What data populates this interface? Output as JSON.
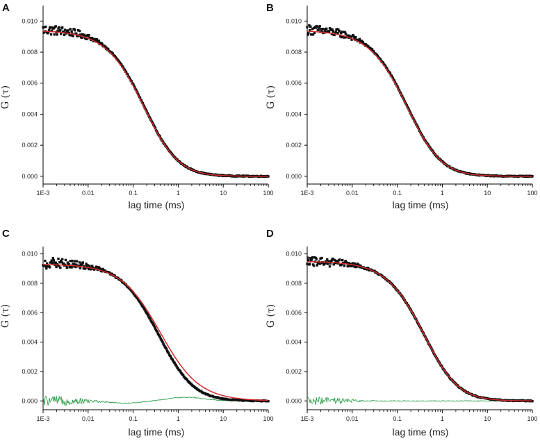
{
  "figure": {
    "xlabel": "lag time (ms)",
    "ylabel": "G (τ)"
  },
  "chart_data": [
    {
      "type": "scatter",
      "panel": "A",
      "xscale": "log",
      "xlim": [
        0.001,
        100
      ],
      "ylim": [
        -0.0005,
        0.011
      ],
      "xticks": [
        0.001,
        0.01,
        0.1,
        1,
        10,
        100
      ],
      "xtick_labels": [
        "1E-3",
        "0.01",
        "0.1",
        "1",
        "10",
        "100"
      ],
      "yticks": [
        0.0,
        0.002,
        0.004,
        0.006,
        0.008,
        0.01
      ],
      "ytick_labels": [
        "0.000",
        "0.002",
        "0.004",
        "0.006",
        "0.008",
        "0.010"
      ],
      "xlabel": "lag time (ms)",
      "ylabel": "G (τ)",
      "series": [
        {
          "name": "data",
          "style": "black squares",
          "model": {
            "G0": 0.0095,
            "tau": 0.2,
            "s": 0.3,
            "noise": 0.0003,
            "offset": 0.0,
            "cross": 0.0
          }
        },
        {
          "name": "fit",
          "style": "red line",
          "model": {
            "G0": 0.0094,
            "tau": 0.2,
            "s": 0.3,
            "offset": 0.0
          }
        }
      ]
    },
    {
      "type": "scatter",
      "panel": "B",
      "xscale": "log",
      "xlim": [
        0.001,
        100
      ],
      "ylim": [
        -0.0005,
        0.011
      ],
      "xticks": [
        0.001,
        0.01,
        0.1,
        1,
        10,
        100
      ],
      "xtick_labels": [
        "1E-3",
        "0.01",
        "0.1",
        "1",
        "10",
        "100"
      ],
      "yticks": [
        0.0,
        0.002,
        0.004,
        0.006,
        0.008,
        0.01
      ],
      "ytick_labels": [
        "0.000",
        "0.002",
        "0.004",
        "0.006",
        "0.008",
        "0.010"
      ],
      "xlabel": "lag time (ms)",
      "ylabel": "G (τ)",
      "series": [
        {
          "name": "data",
          "style": "black squares",
          "model": {
            "G0": 0.0095,
            "tau": 0.19,
            "s": 0.3,
            "noise": 0.0003,
            "offset": 0.0,
            "cross": 0.0
          }
        },
        {
          "name": "fit",
          "style": "red line",
          "model": {
            "G0": 0.0094,
            "tau": 0.19,
            "s": 0.3,
            "offset": 0.0
          }
        }
      ]
    },
    {
      "type": "scatter",
      "panel": "C",
      "xscale": "log",
      "xlim": [
        0.001,
        100
      ],
      "ylim": [
        -0.0006,
        0.0105
      ],
      "xticks": [
        0.001,
        0.01,
        0.1,
        1,
        10,
        100
      ],
      "xtick_labels": [
        "1E-3",
        "0.01",
        "0.1",
        "1",
        "10",
        "100"
      ],
      "yticks": [
        0.0,
        0.002,
        0.004,
        0.006,
        0.008,
        0.01
      ],
      "ytick_labels": [
        "0.000",
        "0.002",
        "0.004",
        "0.006",
        "0.008",
        "0.010"
      ],
      "xlabel": "lag time (ms)",
      "ylabel": "G (τ)",
      "series": [
        {
          "name": "data",
          "style": "black squares",
          "model": {
            "G0": 0.0094,
            "tau": 0.4,
            "s": 0.2,
            "noise": 0.00035,
            "offset": 0.0,
            "cross": 0.0
          }
        },
        {
          "name": "fit",
          "style": "red line",
          "model": {
            "G0": 0.0093,
            "tau": 0.4,
            "s": 0.0,
            "offset": 0.0
          }
        },
        {
          "name": "residuals",
          "style": "green line",
          "model": {
            "amp": 0.00025,
            "noise": 0.00035,
            "decay": 0.01
          }
        }
      ]
    },
    {
      "type": "scatter",
      "panel": "D",
      "xscale": "log",
      "xlim": [
        0.001,
        100
      ],
      "ylim": [
        -0.0006,
        0.0105
      ],
      "xticks": [
        0.001,
        0.01,
        0.1,
        1,
        10,
        100
      ],
      "xtick_labels": [
        "1E-3",
        "0.01",
        "0.1",
        "1",
        "10",
        "100"
      ],
      "yticks": [
        0.0,
        0.002,
        0.004,
        0.006,
        0.008,
        0.01
      ],
      "ytick_labels": [
        "0.000",
        "0.002",
        "0.004",
        "0.006",
        "0.008",
        "0.010"
      ],
      "xlabel": "lag time (ms)",
      "ylabel": "G (τ)",
      "series": [
        {
          "name": "data",
          "style": "black squares",
          "model": {
            "G0": 0.0095,
            "tau": 0.45,
            "s": 0.3,
            "noise": 0.0003,
            "offset": 0.0,
            "cross": 0.0
          }
        },
        {
          "name": "fit",
          "style": "red line",
          "model": {
            "G0": 0.0095,
            "tau": 0.45,
            "s": 0.3,
            "offset": 0.0
          }
        },
        {
          "name": "residuals",
          "style": "green line",
          "model": {
            "amp": 0.0,
            "noise": 0.00028,
            "decay": 0.01
          }
        }
      ]
    }
  ]
}
